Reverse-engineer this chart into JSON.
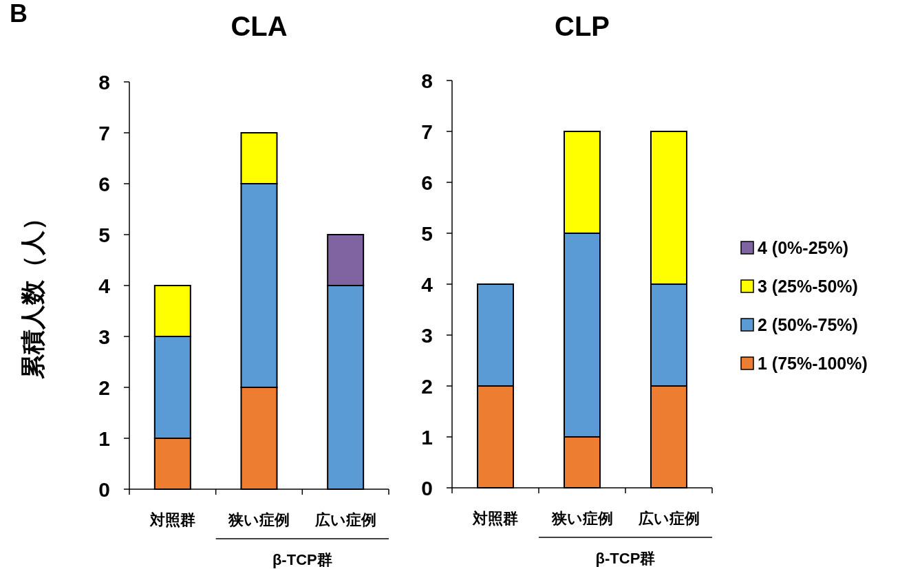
{
  "chart_data": [
    {
      "type": "bar",
      "title": "CLA",
      "ylabel": "累積人数（人）",
      "categories": [
        "対照群",
        "狭い症例",
        "広い症例"
      ],
      "stacked": true,
      "ylim": [
        0,
        8
      ],
      "yticks": [
        0,
        1,
        2,
        3,
        4,
        5,
        6,
        7,
        8
      ],
      "legend": false,
      "series": [
        {
          "color": "#ed7d31",
          "values": [
            1,
            2,
            0
          ]
        },
        {
          "color": "#5b9bd5",
          "values": [
            2,
            4,
            4
          ]
        },
        {
          "color": "#ffff00",
          "values": [
            1,
            1,
            0
          ]
        },
        {
          "color": "#8064a2",
          "values": [
            0,
            0,
            1
          ]
        }
      ],
      "annotations": [
        "B",
        "β-TCP群"
      ]
    },
    {
      "type": "bar",
      "title": "CLP",
      "categories": [
        "対照群",
        "狭い症例",
        "広い症例"
      ],
      "stacked": true,
      "ylim": [
        0,
        8
      ],
      "yticks": [
        0,
        1,
        2,
        3,
        4,
        5,
        6,
        7,
        8
      ],
      "legend": "right",
      "series": [
        {
          "name": "1 (75%-100%)",
          "color": "#ed7d31",
          "values": [
            2,
            1,
            2
          ]
        },
        {
          "name": "2 (50%-75%)",
          "color": "#5b9bd5",
          "values": [
            2,
            4,
            2
          ]
        },
        {
          "name": "3 (25%-50%)",
          "color": "#ffff00",
          "values": [
            0,
            2,
            3
          ]
        },
        {
          "name": "4 (0%-25%)",
          "color": "#8064a2",
          "values": [
            0,
            0,
            0
          ]
        }
      ],
      "annotations": [
        "β-TCP群"
      ]
    }
  ]
}
